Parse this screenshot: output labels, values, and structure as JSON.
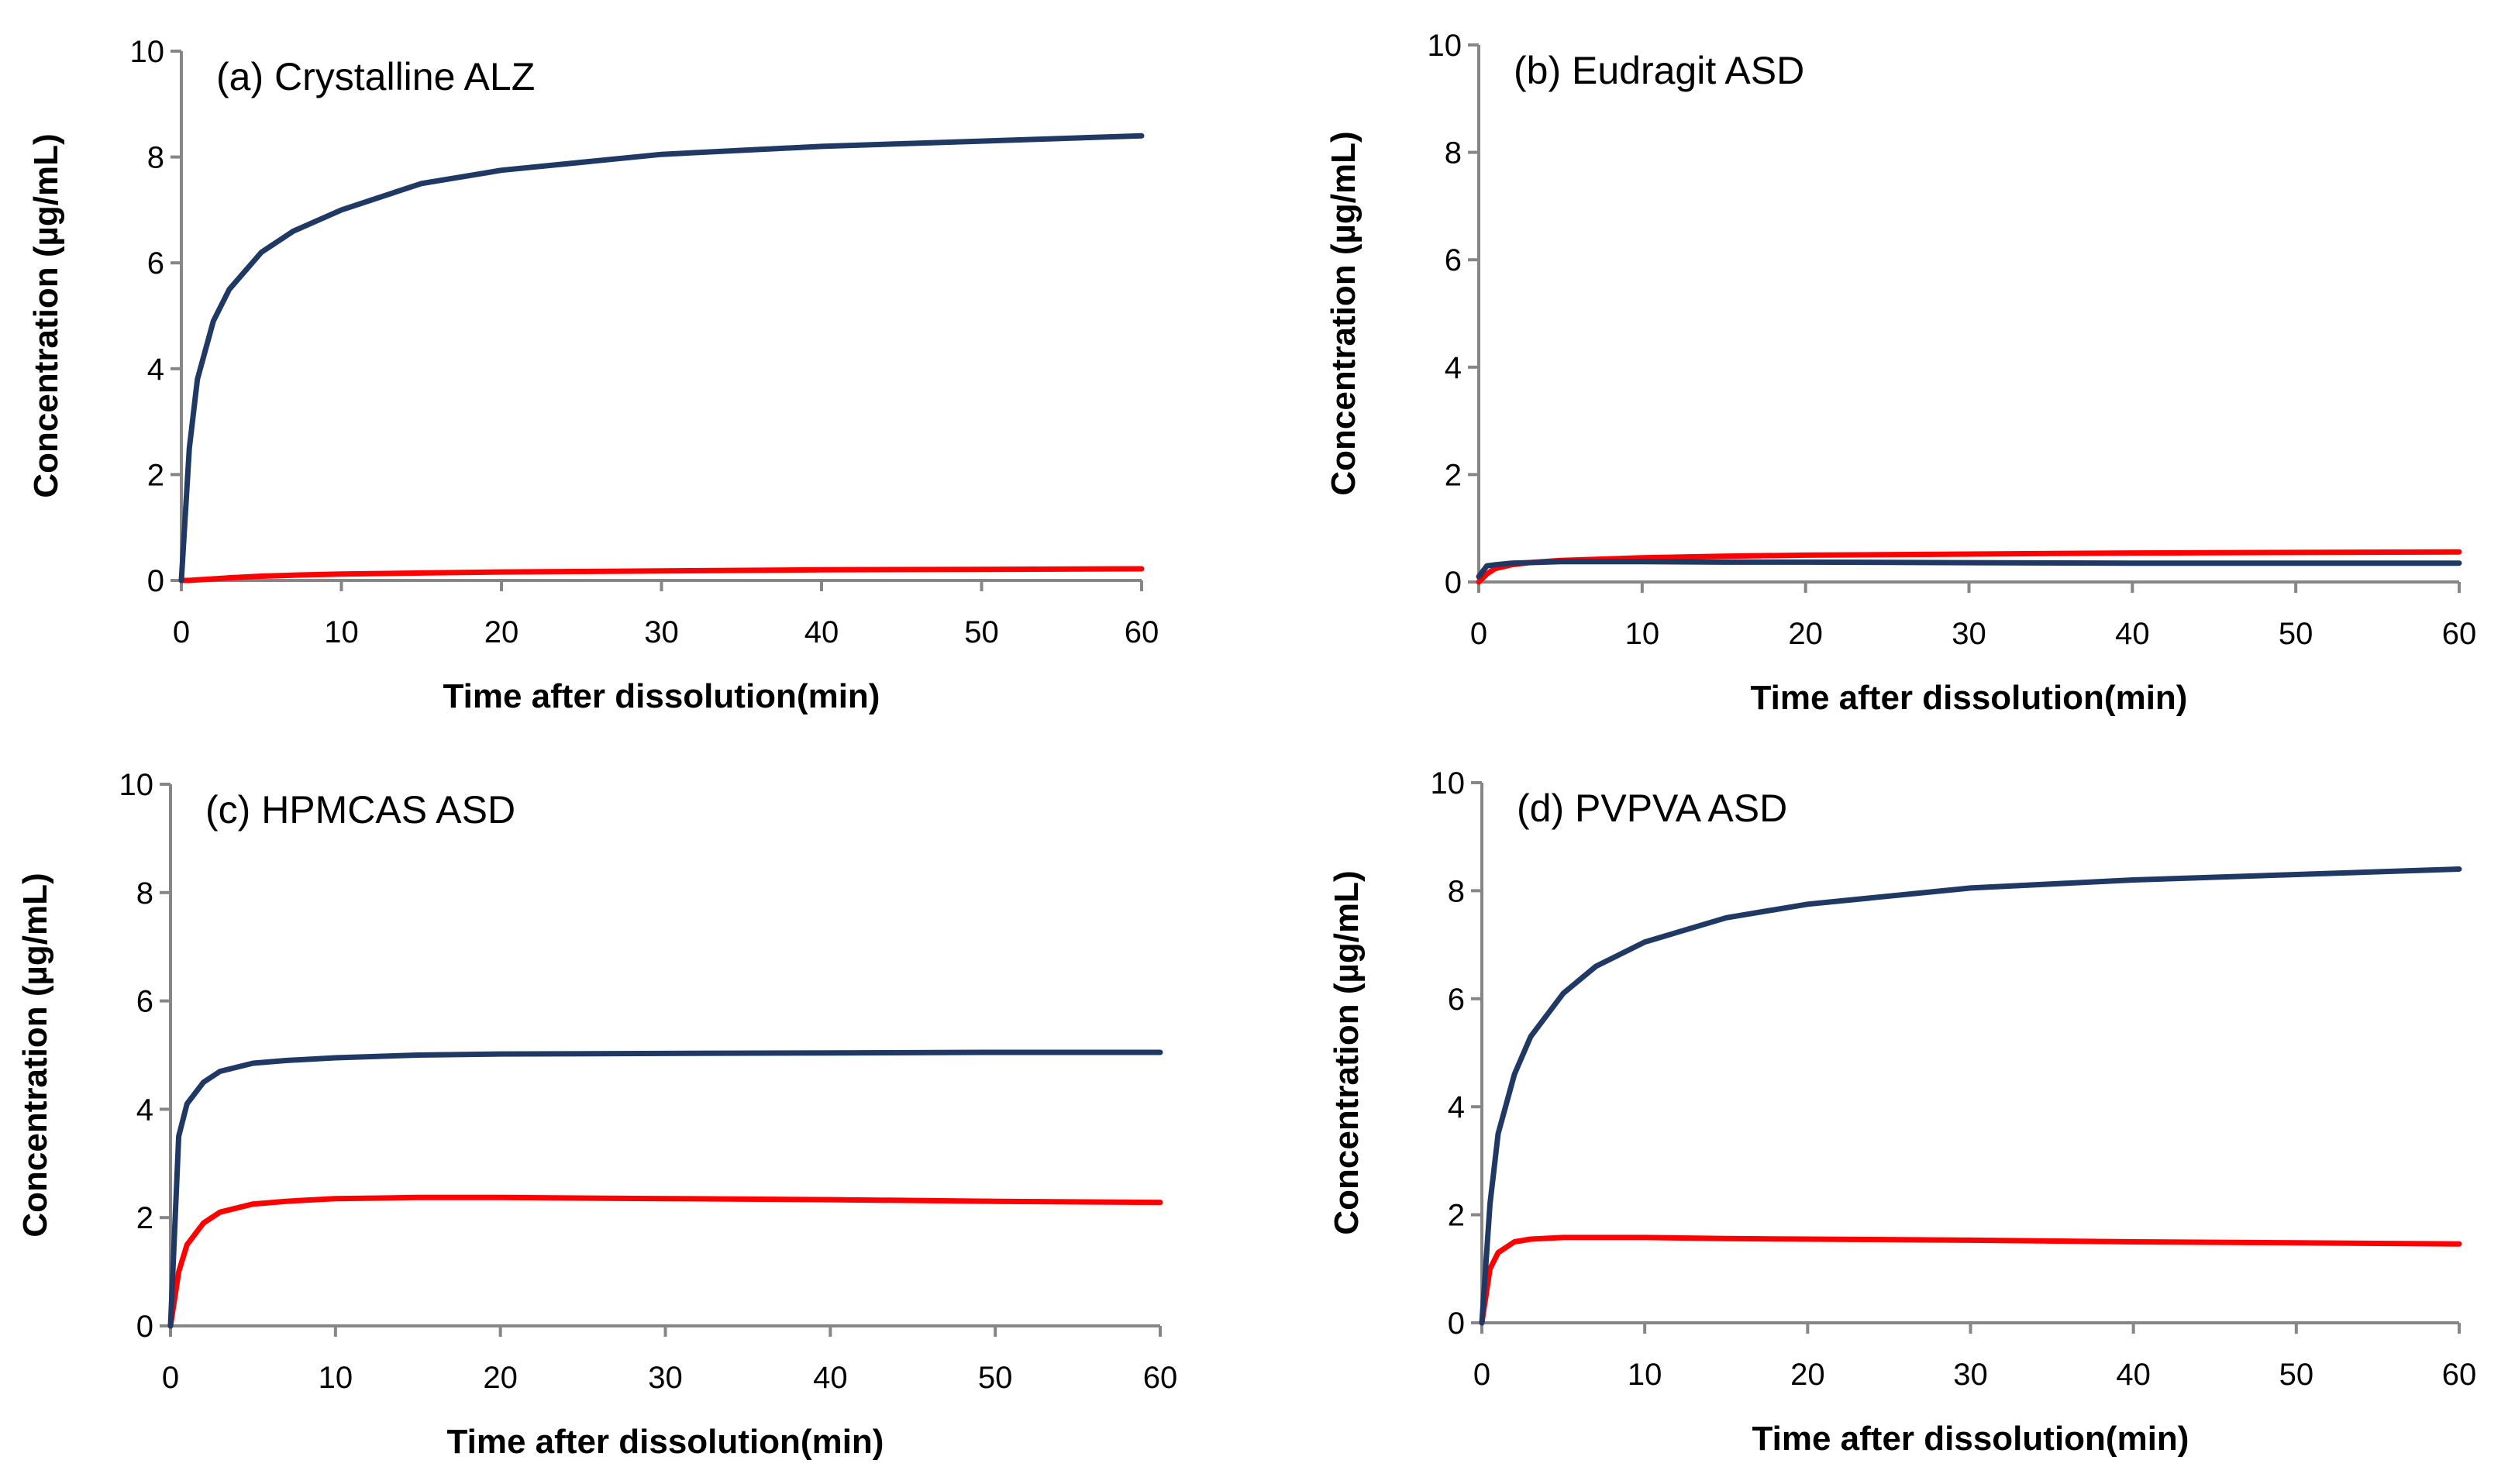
{
  "colors": {
    "series1": "#1f3864",
    "series2": "#ff0000",
    "axis": "#868686"
  },
  "chart_data": [
    {
      "type": "line",
      "title": "(a) Crystalline ALZ",
      "xlabel": "Time after dissolution(min)",
      "ylabel": "Concentration (µg/mL)",
      "xlim": [
        0,
        60
      ],
      "ylim": [
        0,
        10
      ],
      "xticks": [
        "0",
        "10",
        "20",
        "30",
        "40",
        "50",
        "60"
      ],
      "yticks": [
        "0",
        "2",
        "4",
        "6",
        "8",
        "10"
      ],
      "x": [
        0,
        0.5,
        1,
        2,
        3,
        5,
        7,
        10,
        15,
        20,
        30,
        40,
        50,
        60
      ],
      "series": [
        {
          "name": "series1",
          "values": [
            0,
            2.5,
            3.8,
            4.9,
            5.5,
            6.2,
            6.6,
            7.0,
            7.5,
            7.75,
            8.05,
            8.2,
            8.3,
            8.4
          ]
        },
        {
          "name": "series2",
          "values": [
            0,
            0,
            0.01,
            0.03,
            0.05,
            0.08,
            0.1,
            0.12,
            0.14,
            0.16,
            0.18,
            0.2,
            0.21,
            0.22
          ]
        }
      ]
    },
    {
      "type": "line",
      "title": "(b) Eudragit ASD",
      "xlabel": "Time after dissolution(min)",
      "ylabel": "Concentration (µg/mL)",
      "xlim": [
        0,
        60
      ],
      "ylim": [
        0,
        10
      ],
      "xticks": [
        "0",
        "10",
        "20",
        "30",
        "40",
        "50",
        "60"
      ],
      "yticks": [
        "0",
        "2",
        "4",
        "6",
        "8",
        "10"
      ],
      "x": [
        0,
        0.5,
        1,
        2,
        3,
        5,
        7,
        10,
        15,
        20,
        30,
        40,
        50,
        60
      ],
      "series": [
        {
          "name": "series1",
          "values": [
            0.1,
            0.3,
            0.32,
            0.35,
            0.36,
            0.38,
            0.38,
            0.38,
            0.37,
            0.37,
            0.36,
            0.35,
            0.35,
            0.35
          ]
        },
        {
          "name": "series2",
          "values": [
            0,
            0.15,
            0.25,
            0.32,
            0.36,
            0.4,
            0.42,
            0.45,
            0.48,
            0.5,
            0.52,
            0.54,
            0.55,
            0.56
          ]
        }
      ]
    },
    {
      "type": "line",
      "title": "(c) HPMCAS ASD",
      "xlabel": "Time after dissolution(min)",
      "ylabel": "Concentration (µg/mL)",
      "xlim": [
        0,
        60
      ],
      "ylim": [
        0,
        10
      ],
      "xticks": [
        "0",
        "10",
        "20",
        "30",
        "40",
        "50",
        "60"
      ],
      "yticks": [
        "0",
        "2",
        "4",
        "6",
        "8",
        "10"
      ],
      "x": [
        0,
        0.5,
        1,
        2,
        3,
        5,
        7,
        10,
        15,
        20,
        30,
        40,
        50,
        60
      ],
      "series": [
        {
          "name": "series1",
          "values": [
            0,
            3.5,
            4.1,
            4.5,
            4.7,
            4.85,
            4.9,
            4.95,
            5.0,
            5.02,
            5.03,
            5.04,
            5.05,
            5.05
          ]
        },
        {
          "name": "series2",
          "values": [
            0,
            1.0,
            1.5,
            1.9,
            2.1,
            2.25,
            2.3,
            2.35,
            2.37,
            2.37,
            2.35,
            2.33,
            2.3,
            2.28
          ]
        }
      ]
    },
    {
      "type": "line",
      "title": "(d) PVPVA ASD",
      "xlabel": "Time after dissolution(min)",
      "ylabel": "Concentration (µg/mL)",
      "xlim": [
        0,
        60
      ],
      "ylim": [
        0,
        10
      ],
      "xticks": [
        "0",
        "10",
        "20",
        "30",
        "40",
        "50",
        "60"
      ],
      "yticks": [
        "0",
        "2",
        "4",
        "6",
        "8",
        "10"
      ],
      "x": [
        0,
        0.5,
        1,
        2,
        3,
        5,
        7,
        10,
        15,
        20,
        30,
        40,
        50,
        60
      ],
      "series": [
        {
          "name": "series1",
          "values": [
            0,
            2.2,
            3.5,
            4.6,
            5.3,
            6.1,
            6.6,
            7.05,
            7.5,
            7.75,
            8.05,
            8.2,
            8.3,
            8.4
          ]
        },
        {
          "name": "series2",
          "values": [
            0,
            1.0,
            1.3,
            1.5,
            1.55,
            1.58,
            1.58,
            1.58,
            1.56,
            1.55,
            1.53,
            1.5,
            1.48,
            1.46
          ]
        }
      ]
    }
  ]
}
